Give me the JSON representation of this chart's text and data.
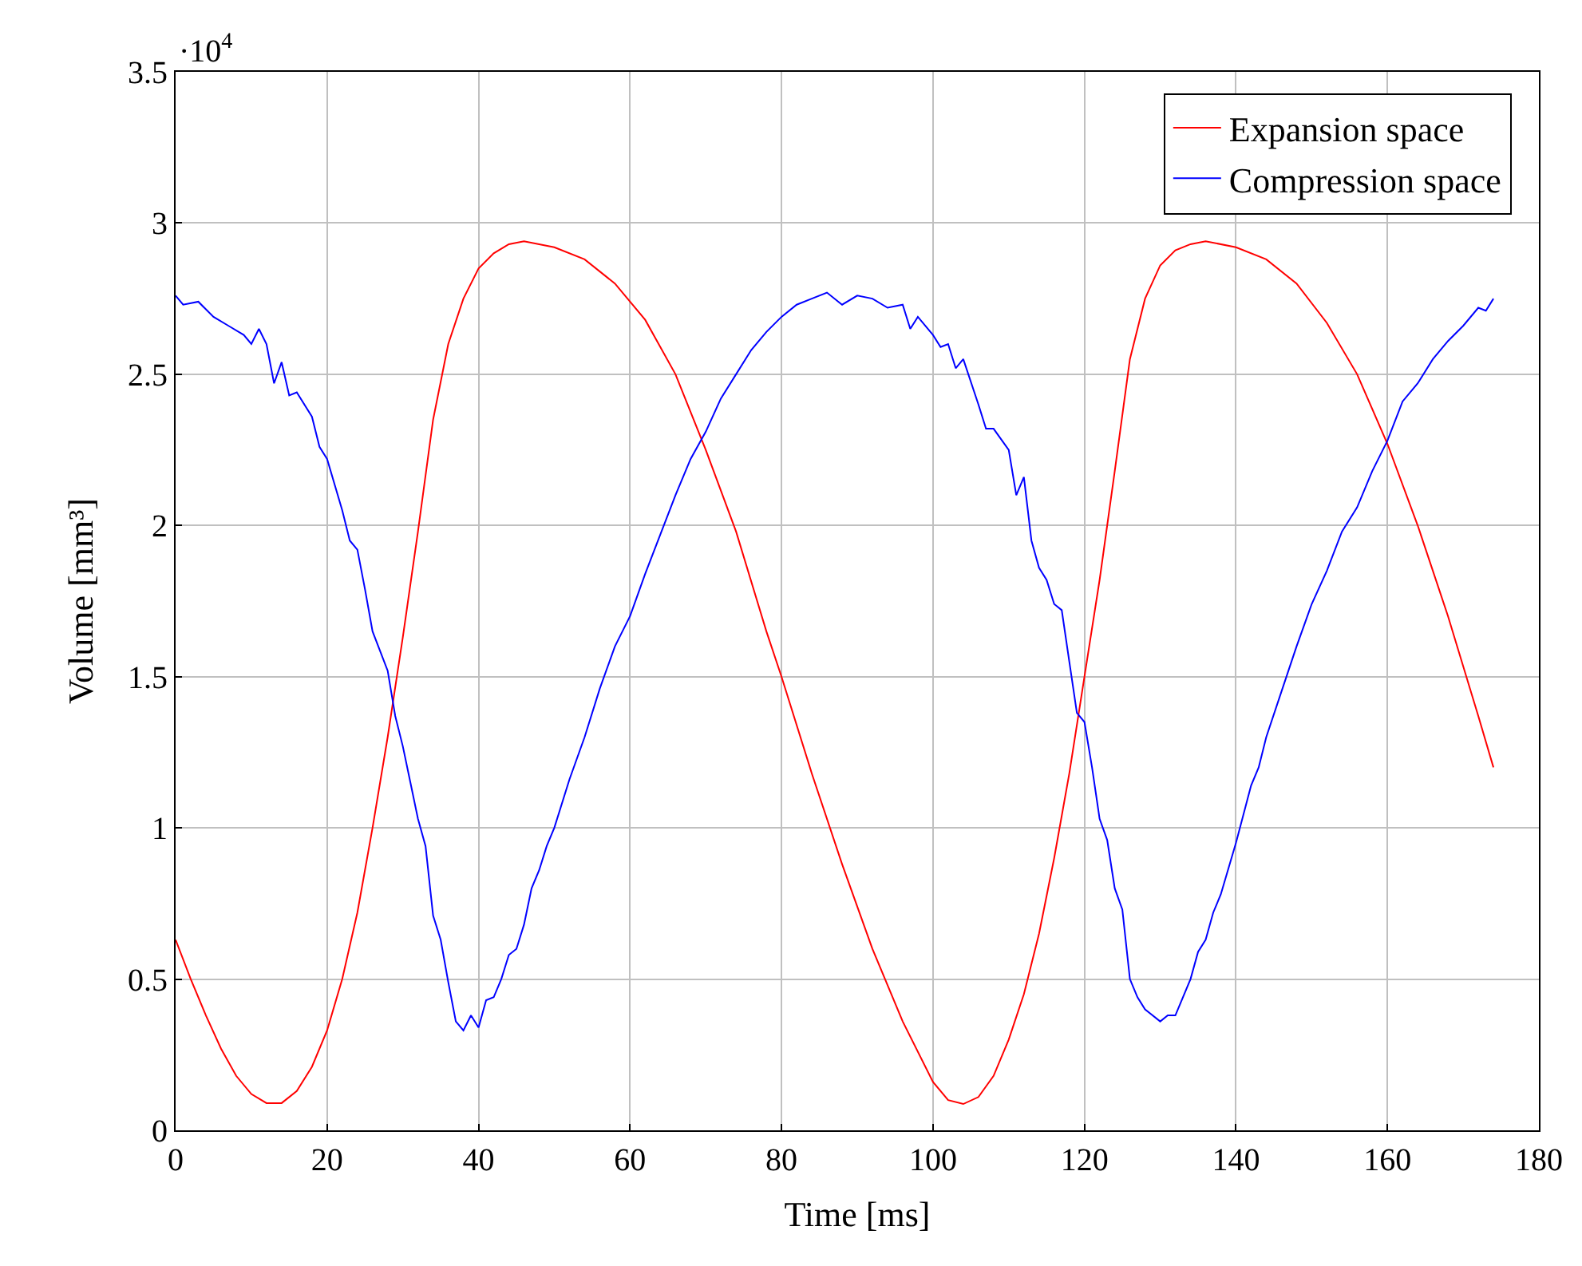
{
  "chart_data": {
    "type": "line",
    "xlabel": "Time [ms]",
    "ylabel": "Volume [mm³]",
    "annotations": [
      "·10$^{4}$"
    ],
    "xlim": [
      0,
      180
    ],
    "xticks": [
      0,
      20,
      40,
      60,
      80,
      100,
      120,
      140,
      160,
      180
    ],
    "ylim": [
      0,
      3.5
    ],
    "yticks": [
      0,
      0.5,
      1,
      1.5,
      2,
      2.5,
      3,
      3.5
    ],
    "grid": true,
    "legend": "top right",
    "marker": "none",
    "line_style": "solid",
    "series": [
      {
        "name": "Expansion space",
        "color": "#ff0000",
        "x": [
          0,
          2,
          4,
          6,
          8,
          10,
          12,
          14,
          16,
          18,
          20,
          22,
          24,
          26,
          28,
          30,
          32,
          34,
          36,
          38,
          40,
          42,
          44,
          46,
          50,
          54,
          58,
          62,
          66,
          70,
          74,
          78,
          80,
          84,
          88,
          92,
          96,
          100,
          102,
          104,
          106,
          108,
          110,
          112,
          114,
          116,
          118,
          120,
          122,
          124,
          126,
          128,
          130,
          132,
          134,
          136,
          140,
          144,
          148,
          152,
          156,
          160,
          164,
          168,
          172,
          174
        ],
        "values": [
          0.63,
          0.5,
          0.38,
          0.27,
          0.18,
          0.12,
          0.09,
          0.09,
          0.13,
          0.21,
          0.33,
          0.5,
          0.72,
          1.0,
          1.3,
          1.63,
          1.98,
          2.35,
          2.6,
          2.75,
          2.85,
          2.9,
          2.93,
          2.94,
          2.92,
          2.88,
          2.8,
          2.68,
          2.5,
          2.25,
          1.98,
          1.65,
          1.5,
          1.18,
          0.88,
          0.6,
          0.36,
          0.16,
          0.1,
          0.087,
          0.11,
          0.18,
          0.3,
          0.45,
          0.65,
          0.9,
          1.18,
          1.5,
          1.82,
          2.18,
          2.55,
          2.75,
          2.86,
          2.91,
          2.93,
          2.94,
          2.92,
          2.88,
          2.8,
          2.67,
          2.5,
          2.27,
          2.0,
          1.7,
          1.37,
          1.2
        ]
      },
      {
        "name": "Compression space",
        "color": "#0000ff",
        "x": [
          0,
          1,
          3,
          5,
          7,
          9,
          10,
          11,
          12,
          13,
          14,
          15,
          16,
          18,
          19,
          20,
          22,
          23,
          24,
          25,
          26,
          28,
          29,
          30,
          31,
          32,
          33,
          34,
          35,
          36,
          37,
          38,
          39,
          40,
          41,
          42,
          43,
          44,
          45,
          46,
          47,
          48,
          49,
          50,
          52,
          54,
          56,
          58,
          60,
          62,
          64,
          66,
          68,
          70,
          72,
          74,
          76,
          78,
          80,
          82,
          84,
          86,
          88,
          90,
          92,
          94,
          96,
          97,
          98,
          100,
          101,
          102,
          103,
          104,
          106,
          107,
          108,
          110,
          111,
          112,
          113,
          114,
          115,
          116,
          117,
          118,
          119,
          120,
          121,
          122,
          123,
          124,
          125,
          126,
          127,
          128,
          130,
          131,
          132,
          134,
          135,
          136,
          137,
          138,
          140,
          142,
          143,
          144,
          146,
          148,
          150,
          152,
          154,
          156,
          158,
          160,
          162,
          164,
          166,
          168,
          170,
          172,
          173,
          174
        ],
        "values": [
          2.76,
          2.73,
          2.74,
          2.69,
          2.66,
          2.63,
          2.6,
          2.65,
          2.6,
          2.47,
          2.54,
          2.43,
          2.44,
          2.36,
          2.26,
          2.22,
          2.05,
          1.95,
          1.92,
          1.79,
          1.65,
          1.52,
          1.37,
          1.27,
          1.15,
          1.03,
          0.94,
          0.71,
          0.63,
          0.49,
          0.36,
          0.33,
          0.38,
          0.34,
          0.43,
          0.44,
          0.5,
          0.58,
          0.6,
          0.68,
          0.8,
          0.86,
          0.94,
          1.0,
          1.16,
          1.3,
          1.46,
          1.6,
          1.7,
          1.84,
          1.97,
          2.1,
          2.22,
          2.31,
          2.42,
          2.5,
          2.58,
          2.64,
          2.69,
          2.73,
          2.75,
          2.77,
          2.73,
          2.76,
          2.75,
          2.72,
          2.73,
          2.65,
          2.69,
          2.63,
          2.59,
          2.6,
          2.52,
          2.55,
          2.4,
          2.32,
          2.32,
          2.25,
          2.1,
          2.16,
          1.95,
          1.86,
          1.82,
          1.74,
          1.72,
          1.55,
          1.38,
          1.35,
          1.2,
          1.03,
          0.96,
          0.8,
          0.73,
          0.5,
          0.44,
          0.4,
          0.36,
          0.38,
          0.38,
          0.5,
          0.59,
          0.63,
          0.72,
          0.78,
          0.95,
          1.14,
          1.2,
          1.3,
          1.45,
          1.6,
          1.74,
          1.85,
          1.98,
          2.06,
          2.18,
          2.28,
          2.41,
          2.47,
          2.55,
          2.61,
          2.66,
          2.72,
          2.71,
          2.75
        ]
      }
    ]
  }
}
